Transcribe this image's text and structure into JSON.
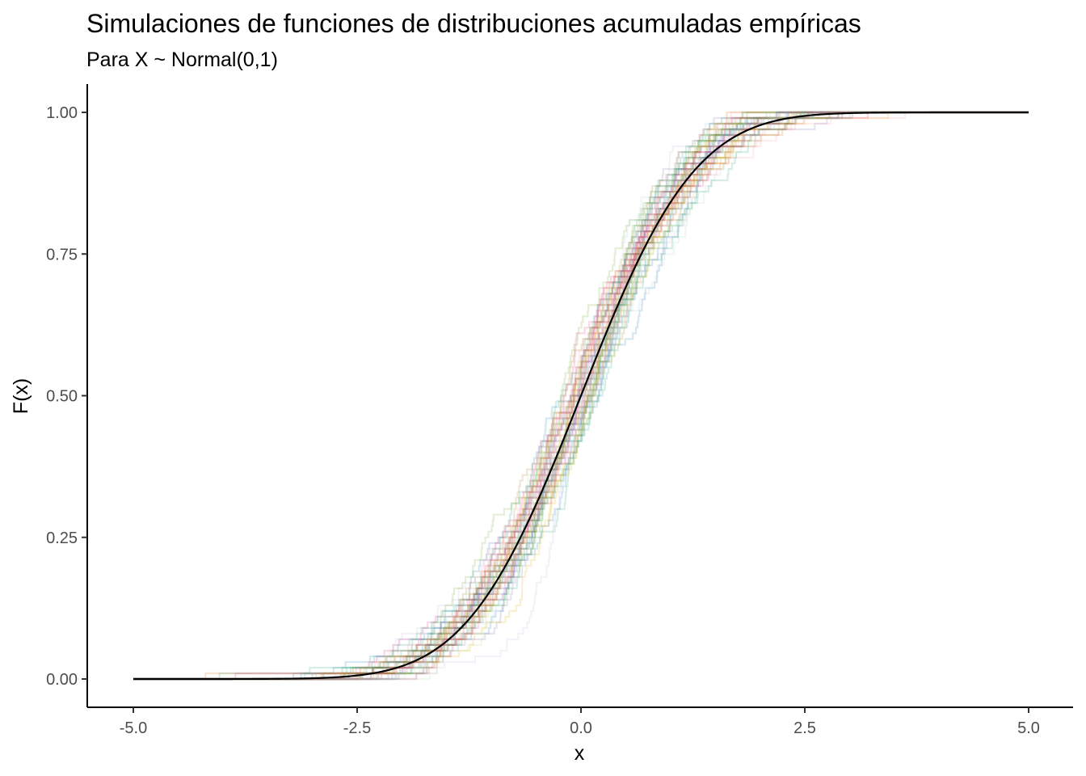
{
  "chart_data": {
    "type": "line",
    "title": "Simulaciones de funciones de distribuciones acumuladas empíricas",
    "subtitle": "Para X ~ Normal(0,1)",
    "xlabel": "x",
    "ylabel": "F(x)",
    "xlim": [
      -5,
      5
    ],
    "ylim": [
      0,
      1
    ],
    "x_ticks": [
      -5,
      -2.5,
      0,
      2.5,
      5
    ],
    "x_tick_labels": [
      "-5.0",
      "-2.5",
      "0.0",
      "2.5",
      "5.0"
    ],
    "y_ticks": [
      0,
      0.25,
      0.5,
      0.75,
      1
    ],
    "y_tick_labels": [
      "0.00",
      "0.25",
      "0.50",
      "0.75",
      "1.00"
    ],
    "grid": false,
    "legend": "none",
    "series": [
      {
        "kind": "theoretical_cdf",
        "distribution": "Normal(0,1)",
        "color": "#000000",
        "x_range": [
          -5,
          5
        ]
      },
      {
        "kind": "empirical_cdf_simulations",
        "count": 50,
        "sample_size": 100,
        "colors": [
          "#e7298a",
          "#1b9e77",
          "#7570b3",
          "#d95f02",
          "#66a61e",
          "#e6ab02",
          "#a6761d",
          "#1f78b4",
          "#a6cee3",
          "#b2df8a",
          "#fb9a99",
          "#cab2d6"
        ],
        "opacity": 0.18,
        "x_range": [
          -5,
          5
        ]
      }
    ]
  }
}
